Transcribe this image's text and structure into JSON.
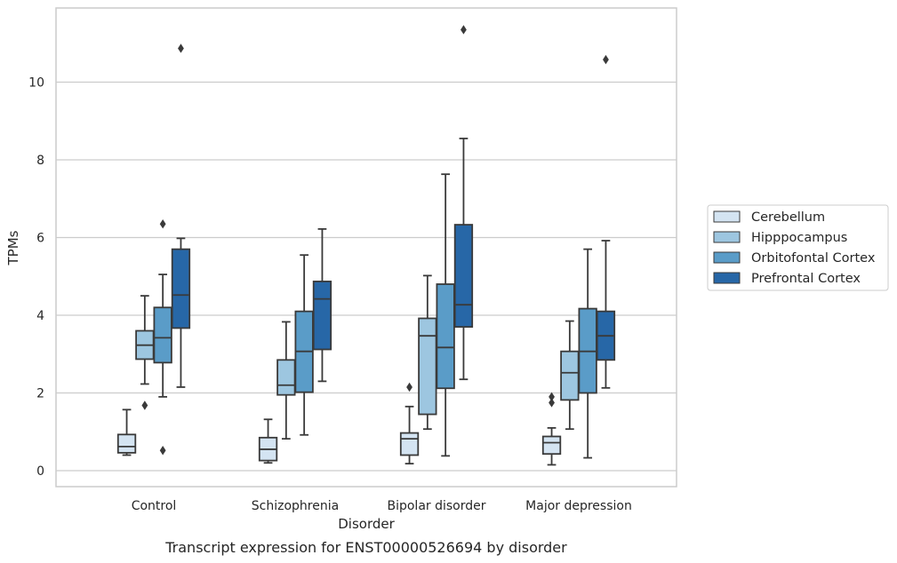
{
  "chart_data": {
    "type": "box",
    "title": "",
    "caption": "Transcript expression for ENST00000526694 by disorder",
    "xlabel": "Disorder",
    "ylabel": "TPMs",
    "ylim": [
      -0.4,
      11.9
    ],
    "yticks": [
      0,
      2,
      4,
      6,
      8,
      10
    ],
    "grid": "horizontal",
    "legend_position": "right",
    "categories": [
      "Control",
      "Schizophrenia",
      "Bipolar disorder",
      "Major depression"
    ],
    "series": [
      {
        "name": "Cerebellum",
        "color": "#d4e4f2",
        "boxes": [
          {
            "whislo": 0.4,
            "q1": 0.46,
            "median": 0.62,
            "q3": 0.93,
            "whishi": 1.57,
            "fliers": []
          },
          {
            "whislo": 0.2,
            "q1": 0.26,
            "median": 0.55,
            "q3": 0.85,
            "whishi": 1.32,
            "fliers": []
          },
          {
            "whislo": 0.18,
            "q1": 0.4,
            "median": 0.82,
            "q3": 0.97,
            "whishi": 1.65,
            "fliers": [
              2.15
            ]
          },
          {
            "whislo": 0.15,
            "q1": 0.43,
            "median": 0.72,
            "q3": 0.88,
            "whishi": 1.1,
            "fliers": [
              1.75,
              1.9
            ]
          }
        ]
      },
      {
        "name": "Hipppocampus",
        "color": "#9dc6e0",
        "boxes": [
          {
            "whislo": 2.23,
            "q1": 2.87,
            "median": 3.23,
            "q3": 3.6,
            "whishi": 4.5,
            "fliers": [
              1.68
            ]
          },
          {
            "whislo": 0.82,
            "q1": 1.95,
            "median": 2.2,
            "q3": 2.85,
            "whishi": 3.83,
            "fliers": []
          },
          {
            "whislo": 1.07,
            "q1": 1.45,
            "median": 3.47,
            "q3": 3.92,
            "whishi": 5.02,
            "fliers": []
          },
          {
            "whislo": 1.07,
            "q1": 1.82,
            "median": 2.52,
            "q3": 3.07,
            "whishi": 3.85,
            "fliers": []
          }
        ]
      },
      {
        "name": "Orbitofontal Cortex",
        "color": "#5a9cc8",
        "boxes": [
          {
            "whislo": 1.9,
            "q1": 2.78,
            "median": 3.42,
            "q3": 4.2,
            "whishi": 5.05,
            "fliers": [
              6.35,
              0.52
            ]
          },
          {
            "whislo": 0.92,
            "q1": 2.02,
            "median": 3.07,
            "q3": 4.1,
            "whishi": 5.55,
            "fliers": []
          },
          {
            "whislo": 0.38,
            "q1": 2.12,
            "median": 3.17,
            "q3": 4.8,
            "whishi": 7.63,
            "fliers": []
          },
          {
            "whislo": 0.33,
            "q1": 2.0,
            "median": 3.07,
            "q3": 4.17,
            "whishi": 5.7,
            "fliers": []
          }
        ]
      },
      {
        "name": "Prefrontal Cortex",
        "color": "#2767a7",
        "boxes": [
          {
            "whislo": 2.15,
            "q1": 3.67,
            "median": 4.52,
            "q3": 5.7,
            "whishi": 5.98,
            "fliers": [
              10.87
            ]
          },
          {
            "whislo": 2.3,
            "q1": 3.12,
            "median": 4.42,
            "q3": 4.87,
            "whishi": 6.22,
            "fliers": []
          },
          {
            "whislo": 2.35,
            "q1": 3.7,
            "median": 4.27,
            "q3": 6.33,
            "whishi": 8.55,
            "fliers": [
              11.35
            ]
          },
          {
            "whislo": 2.13,
            "q1": 2.85,
            "median": 3.47,
            "q3": 4.1,
            "whishi": 5.92,
            "fliers": [
              10.58
            ]
          }
        ]
      }
    ]
  }
}
